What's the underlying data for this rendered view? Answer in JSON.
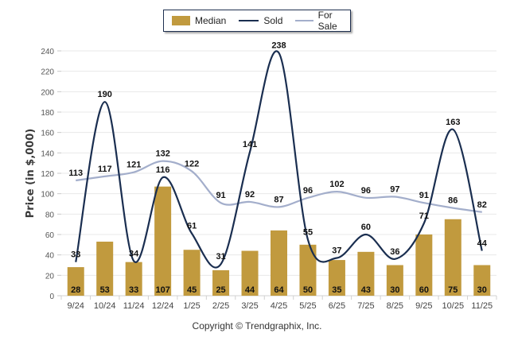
{
  "chart_data": {
    "type": "bar",
    "title": "",
    "xlabel": "",
    "ylabel": "Price (in $,000)",
    "ylim": [
      0,
      240
    ],
    "yticks": [
      0,
      20,
      40,
      60,
      80,
      100,
      120,
      140,
      160,
      180,
      200,
      220,
      240
    ],
    "grid": true,
    "legend_position": "top-center",
    "categories": [
      "9/24",
      "10/24",
      "11/24",
      "12/24",
      "1/25",
      "2/25",
      "3/25",
      "4/25",
      "5/25",
      "6/25",
      "7/25",
      "8/25",
      "9/25",
      "10/25",
      "11/25"
    ],
    "series": [
      {
        "name": "Median",
        "type": "bar",
        "color": "#c19a3e",
        "values": [
          28,
          53,
          33,
          107,
          45,
          25,
          44,
          64,
          50,
          35,
          43,
          30,
          60,
          75,
          30
        ]
      },
      {
        "name": "Sold",
        "type": "line",
        "color": "#1a2e50",
        "values": [
          33,
          190,
          34,
          116,
          61,
          31,
          141,
          238,
          55,
          37,
          60,
          36,
          71,
          163,
          44
        ]
      },
      {
        "name": "For Sale",
        "type": "line",
        "color": "#a3aecb",
        "values": [
          113,
          117,
          121,
          132,
          122,
          91,
          92,
          87,
          96,
          102,
          96,
          97,
          91,
          86,
          82
        ]
      }
    ]
  },
  "footer": {
    "copyright": "Copyright © Trendgraphix, Inc."
  }
}
